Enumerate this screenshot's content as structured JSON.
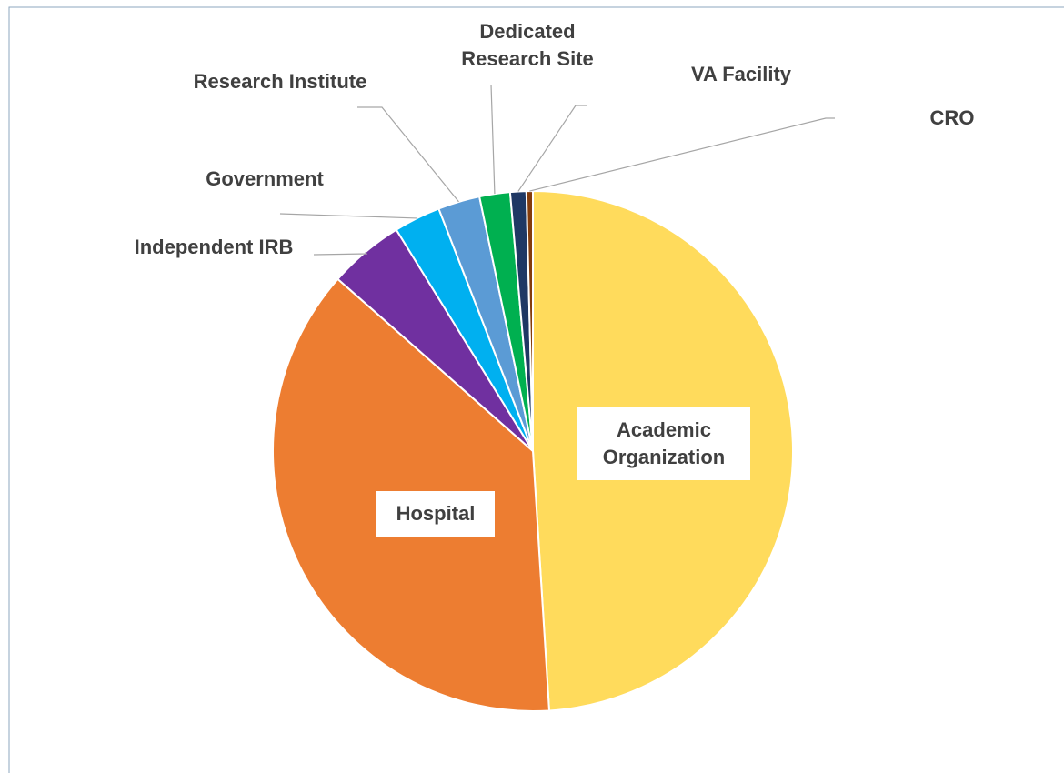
{
  "chart_data": {
    "type": "pie",
    "categories": [
      "Academic Organization",
      "Hospital",
      "Independent IRB",
      "Government",
      "Research Institute",
      "Dedicated Research Site",
      "VA Facility",
      "CRO"
    ],
    "values": [
      49.0,
      37.5,
      4.7,
      2.9,
      2.6,
      1.9,
      1.0,
      0.4
    ],
    "colors": [
      "#FFDB5C",
      "#ED7D31",
      "#7030A0",
      "#00B0F0",
      "#5B9BD5",
      "#00B050",
      "#1F3864",
      "#843C0C"
    ]
  }
}
